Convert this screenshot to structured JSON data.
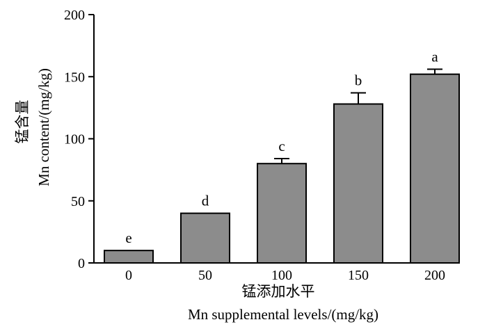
{
  "chart_data": {
    "type": "bar",
    "categories": [
      "0",
      "50",
      "100",
      "150",
      "200"
    ],
    "values": [
      10,
      40,
      80,
      128,
      152
    ],
    "errors": [
      0,
      0,
      4,
      9,
      4
    ],
    "significance_labels": [
      "e",
      "d",
      "c",
      "b",
      "a"
    ],
    "xlabel_cn": "锰添加水平",
    "xlabel_en": "Mn supplemental levels/(mg/kg)",
    "ylabel_cn": "锰含量",
    "ylabel_en": "Mn content/(mg/kg)",
    "ylim": [
      0,
      200
    ],
    "yticks": [
      "0",
      "50",
      "100",
      "150",
      "200"
    ],
    "grid": false,
    "bar_color": "#8c8c8c"
  }
}
